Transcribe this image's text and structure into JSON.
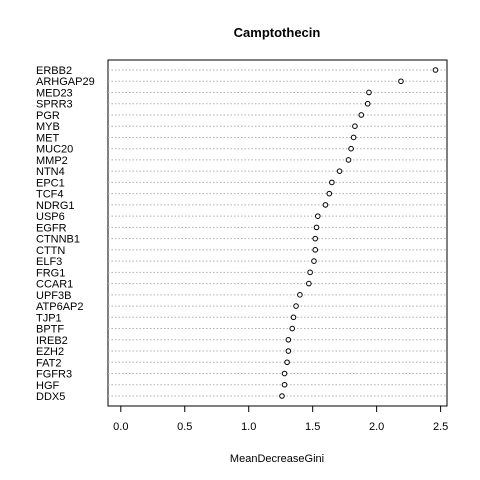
{
  "chart_data": {
    "type": "scatter",
    "subtype": "dotchart",
    "title": "Camptothecin",
    "xlabel": "MeanDecreaseGini",
    "ylabel": "",
    "xlim": [
      -0.1,
      2.55
    ],
    "xticks": [
      "0.0",
      "0.5",
      "1.0",
      "1.5",
      "2.0",
      "2.5"
    ],
    "grid": "dotted horizontal lines",
    "categories": [
      "ERBB2",
      "ARHGAP29",
      "MED23",
      "SPRR3",
      "PGR",
      "MYB",
      "MET",
      "MUC20",
      "MMP2",
      "NTN4",
      "EPC1",
      "TCF4",
      "NDRG1",
      "USP6",
      "EGFR",
      "CTNNB1",
      "CTTN",
      "ELF3",
      "FRG1",
      "CCAR1",
      "UPF3B",
      "ATP6AP2",
      "TJP1",
      "BPTF",
      "IREB2",
      "EZH2",
      "FAT2",
      "FGFR3",
      "HGF",
      "DDX5"
    ],
    "values": [
      2.46,
      2.19,
      1.94,
      1.93,
      1.88,
      1.83,
      1.82,
      1.8,
      1.78,
      1.71,
      1.65,
      1.63,
      1.6,
      1.54,
      1.53,
      1.52,
      1.52,
      1.51,
      1.48,
      1.47,
      1.4,
      1.37,
      1.35,
      1.34,
      1.31,
      1.31,
      1.3,
      1.28,
      1.28,
      1.26
    ]
  }
}
